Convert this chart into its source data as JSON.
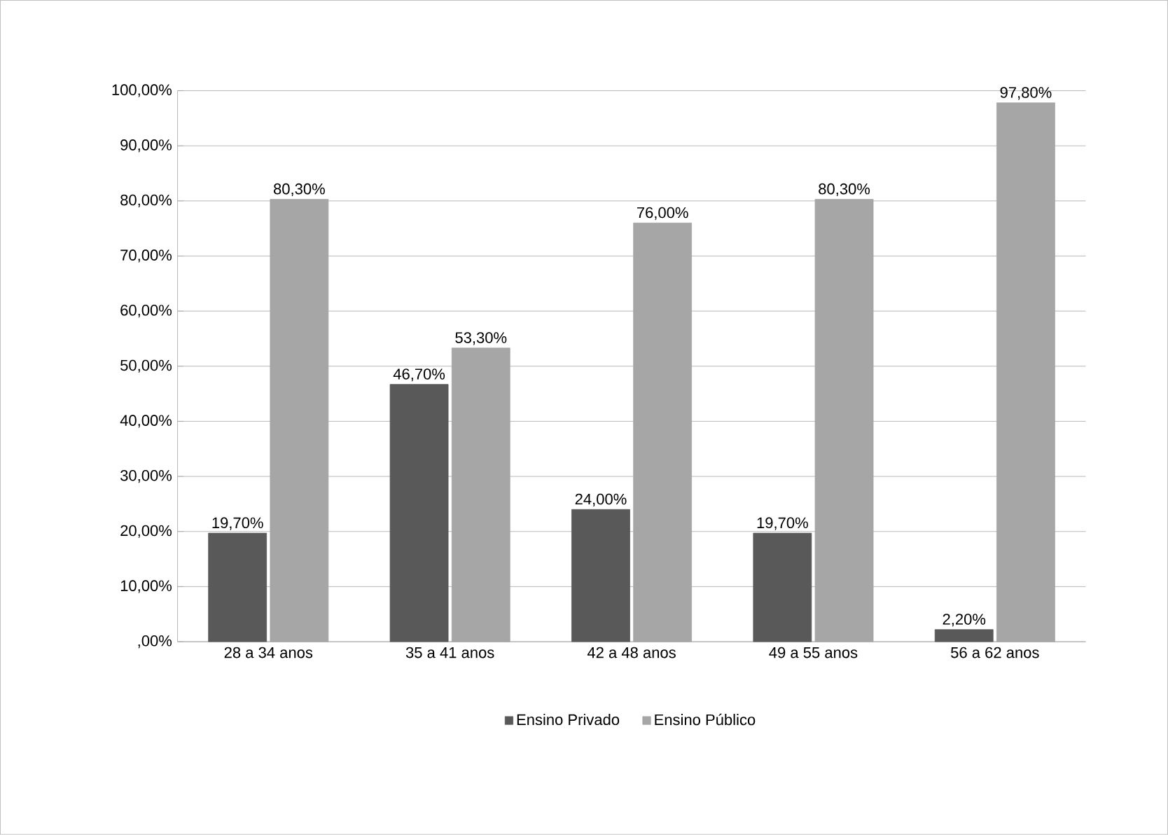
{
  "chart_data": {
    "type": "bar",
    "categories": [
      "28 a 34 anos",
      "35 a 41 anos",
      "42 a 48 anos",
      "49 a 55 anos",
      "56 a 62 anos"
    ],
    "series": [
      {
        "name": "Ensino Privado",
        "color": "#595959",
        "values": [
          19.7,
          46.7,
          24.0,
          19.7,
          2.2
        ],
        "value_labels": [
          "19,70%",
          "46,70%",
          "24,00%",
          "19,70%",
          "2,20%"
        ]
      },
      {
        "name": "Ensino Público",
        "color": "#a6a6a6",
        "values": [
          80.3,
          53.3,
          76.0,
          80.3,
          97.8
        ],
        "value_labels": [
          "80,30%",
          "53,30%",
          "76,00%",
          "80,30%",
          "97,80%"
        ]
      }
    ],
    "ylim": [
      0,
      100
    ],
    "yticks": [
      {
        "value": 0,
        "label": ",00%"
      },
      {
        "value": 10,
        "label": "10,00%"
      },
      {
        "value": 20,
        "label": "20,00%"
      },
      {
        "value": 30,
        "label": "30,00%"
      },
      {
        "value": 40,
        "label": "40,00%"
      },
      {
        "value": 50,
        "label": "50,00%"
      },
      {
        "value": 60,
        "label": "60,00%"
      },
      {
        "value": 70,
        "label": "70,00%"
      },
      {
        "value": 80,
        "label": "80,00%"
      },
      {
        "value": 90,
        "label": "90,00%"
      },
      {
        "value": 100,
        "label": "100,00%"
      }
    ],
    "grid": "y",
    "legend": "bottom"
  }
}
